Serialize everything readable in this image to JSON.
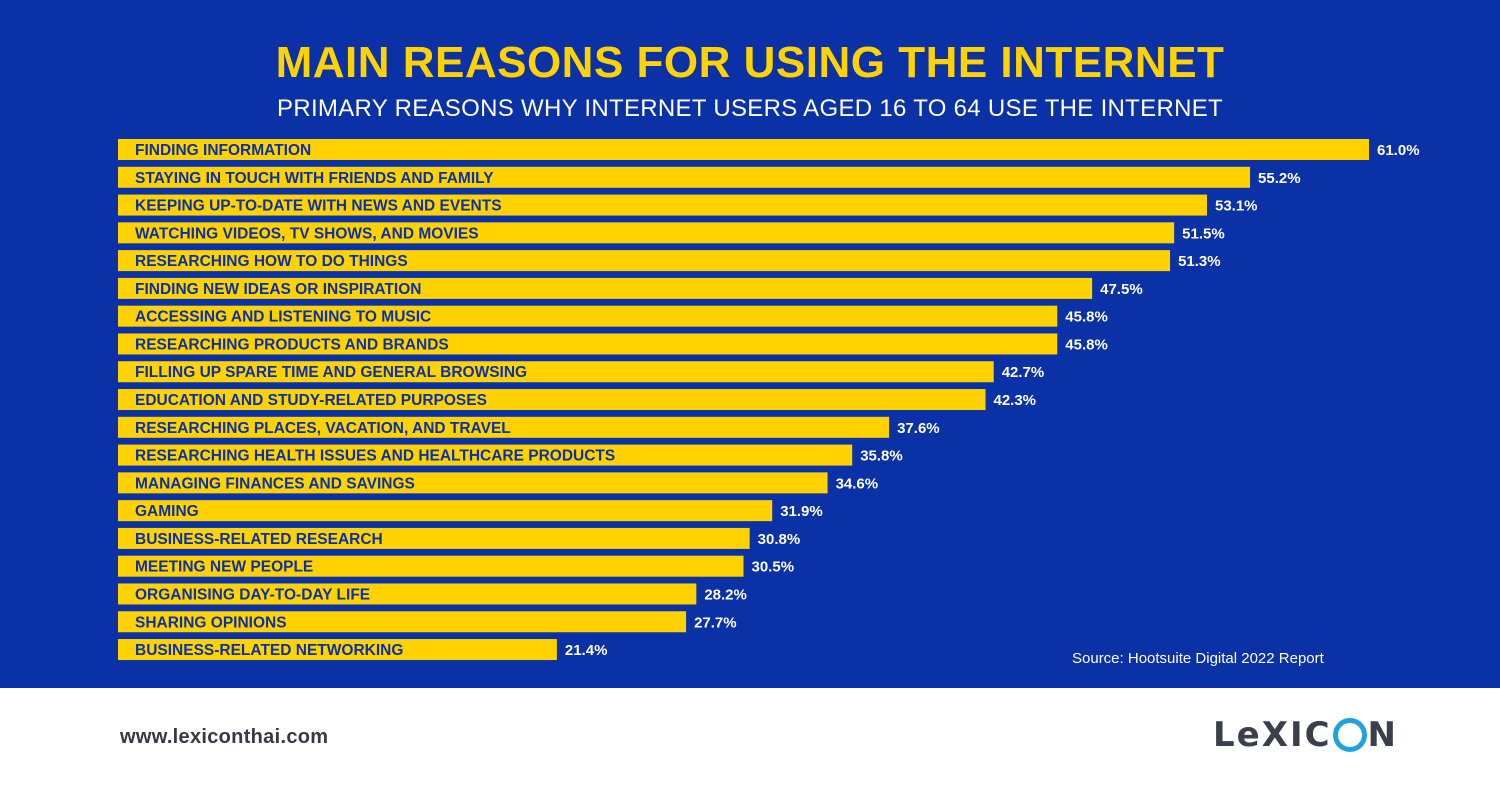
{
  "header": {
    "title": "MAIN REASONS FOR USING THE INTERNET",
    "subtitle": "PRIMARY REASONS WHY INTERNET USERS AGED 16 TO 64 USE THE INTERNET"
  },
  "chart_data": {
    "type": "bar",
    "orientation": "horizontal",
    "title": "MAIN REASONS FOR USING THE INTERNET",
    "subtitle": "PRIMARY REASONS WHY INTERNET USERS AGED 16 TO 64 USE THE INTERNET",
    "categories": [
      "FINDING INFORMATION",
      "STAYING IN TOUCH WITH FRIENDS AND FAMILY",
      "KEEPING UP-TO-DATE WITH NEWS AND EVENTS",
      "WATCHING VIDEOS, TV SHOWS, AND MOVIES",
      "RESEARCHING HOW TO DO THINGS",
      "FINDING NEW IDEAS OR INSPIRATION",
      "ACCESSING AND LISTENING TO MUSIC",
      "RESEARCHING PRODUCTS AND BRANDS",
      "FILLING UP SPARE TIME AND GENERAL BROWSING",
      "EDUCATION AND STUDY-RELATED PURPOSES",
      "RESEARCHING PLACES, VACATION, AND TRAVEL",
      "RESEARCHING HEALTH ISSUES AND HEALTHCARE PRODUCTS",
      "MANAGING FINANCES AND SAVINGS",
      "GAMING",
      "BUSINESS-RELATED RESEARCH",
      "MEETING NEW PEOPLE",
      "ORGANISING DAY-TO-DAY LIFE",
      "SHARING OPINIONS",
      "BUSINESS-RELATED NETWORKING"
    ],
    "values": [
      61.0,
      55.2,
      53.1,
      51.5,
      51.3,
      47.5,
      45.8,
      45.8,
      42.7,
      42.3,
      37.6,
      35.8,
      34.6,
      31.9,
      30.8,
      30.5,
      28.2,
      27.7,
      21.4
    ],
    "value_labels": [
      "61.0%",
      "55.2%",
      "53.1%",
      "51.5%",
      "51.3%",
      "47.5%",
      "45.8%",
      "45.8%",
      "42.7%",
      "42.3%",
      "37.6%",
      "35.8%",
      "34.6%",
      "31.9%",
      "30.8%",
      "30.5%",
      "28.2%",
      "27.7%",
      "21.4%"
    ],
    "xlim": [
      0,
      61.0
    ],
    "grid": false,
    "legend": "none",
    "bar_color": "#ffd200",
    "background_color": "#0a31a6"
  },
  "source": "Source: Hootsuite Digital 2022 Report",
  "footer": {
    "url": "www.lexiconthai.com",
    "logo_text_left": "LeXIC",
    "logo_text_right": "N"
  },
  "colors": {
    "title": "#ffd200",
    "panel": "#0a31a6",
    "logo_ring": "#1fa3df"
  }
}
